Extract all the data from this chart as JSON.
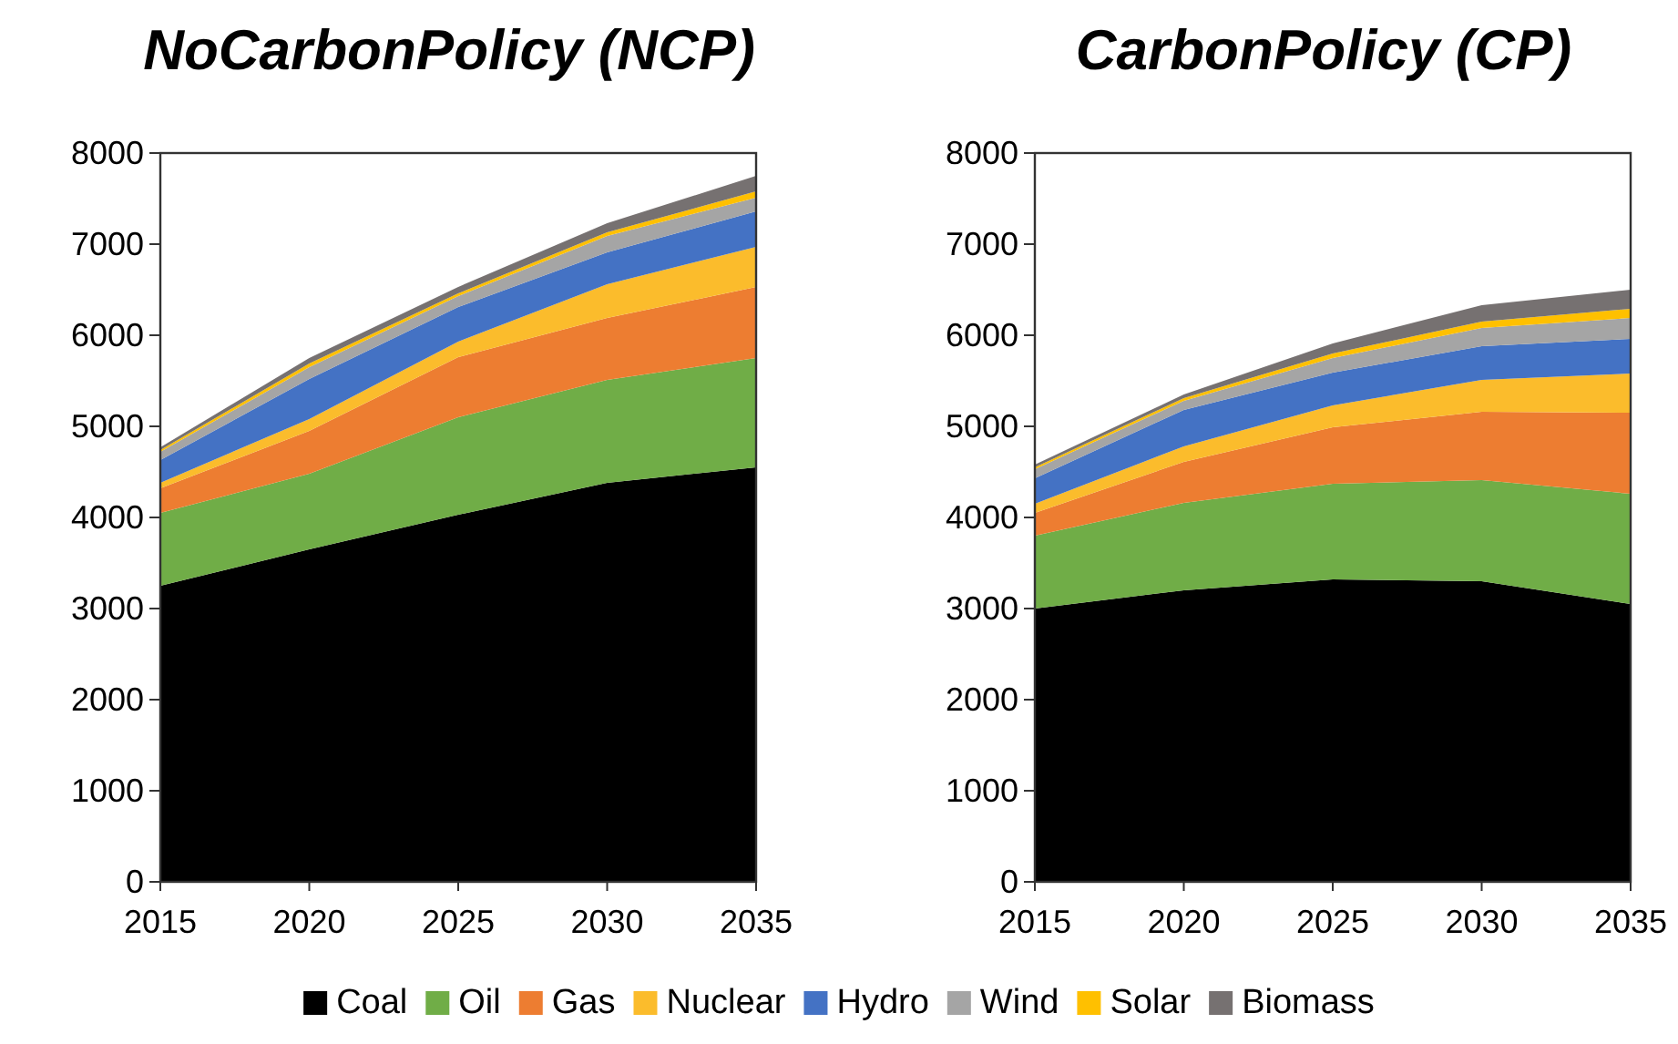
{
  "chart_data": [
    {
      "type": "area",
      "stacked": true,
      "title": "NoCarbonPolicy (NCP)",
      "x": [
        2015,
        2020,
        2025,
        2030,
        2035
      ],
      "xlim": [
        2015,
        2035
      ],
      "xticks": [
        2015,
        2020,
        2025,
        2030,
        2035
      ],
      "ylim": [
        0,
        8000
      ],
      "yticks": [
        0,
        1000,
        2000,
        3000,
        4000,
        5000,
        6000,
        7000,
        8000
      ],
      "grid": false,
      "legend": "bottom",
      "series": [
        {
          "name": "Coal",
          "color": "#000000",
          "values": [
            3250,
            3650,
            4030,
            4380,
            4550
          ]
        },
        {
          "name": "Oil",
          "color": "#70ad47",
          "values": [
            800,
            830,
            1070,
            1130,
            1200
          ]
        },
        {
          "name": "Gas",
          "color": "#ed7d31",
          "values": [
            270,
            470,
            660,
            680,
            780
          ]
        },
        {
          "name": "Nuclear",
          "color": "#fbbc2c",
          "values": [
            60,
            130,
            170,
            370,
            440
          ]
        },
        {
          "name": "Hydro",
          "color": "#4472c4",
          "values": [
            250,
            440,
            380,
            350,
            390
          ]
        },
        {
          "name": "Wind",
          "color": "#a5a5a5",
          "values": [
            90,
            130,
            120,
            180,
            150
          ]
        },
        {
          "name": "Solar",
          "color": "#ffc000",
          "values": [
            20,
            40,
            30,
            40,
            70
          ]
        },
        {
          "name": "Biomass",
          "color": "#767171",
          "values": [
            30,
            60,
            70,
            100,
            170
          ]
        }
      ]
    },
    {
      "type": "area",
      "stacked": true,
      "title": "CarbonPolicy (CP)",
      "x": [
        2015,
        2020,
        2025,
        2030,
        2035
      ],
      "xlim": [
        2015,
        2035
      ],
      "xticks": [
        2015,
        2020,
        2025,
        2030,
        2035
      ],
      "ylim": [
        0,
        8000
      ],
      "yticks": [
        0,
        1000,
        2000,
        3000,
        4000,
        5000,
        6000,
        7000,
        8000
      ],
      "grid": false,
      "legend": "bottom",
      "series": [
        {
          "name": "Coal",
          "color": "#000000",
          "values": [
            3000,
            3200,
            3320,
            3300,
            3050
          ]
        },
        {
          "name": "Oil",
          "color": "#70ad47",
          "values": [
            800,
            960,
            1050,
            1110,
            1210
          ]
        },
        {
          "name": "Gas",
          "color": "#ed7d31",
          "values": [
            250,
            450,
            620,
            750,
            890
          ]
        },
        {
          "name": "Nuclear",
          "color": "#fbbc2c",
          "values": [
            100,
            170,
            240,
            350,
            430
          ]
        },
        {
          "name": "Hydro",
          "color": "#4472c4",
          "values": [
            280,
            400,
            360,
            370,
            380
          ]
        },
        {
          "name": "Wind",
          "color": "#a5a5a5",
          "values": [
            100,
            100,
            160,
            200,
            230
          ]
        },
        {
          "name": "Solar",
          "color": "#ffc000",
          "values": [
            20,
            30,
            50,
            70,
            100
          ]
        },
        {
          "name": "Biomass",
          "color": "#767171",
          "values": [
            30,
            40,
            110,
            180,
            210
          ]
        }
      ]
    }
  ]
}
